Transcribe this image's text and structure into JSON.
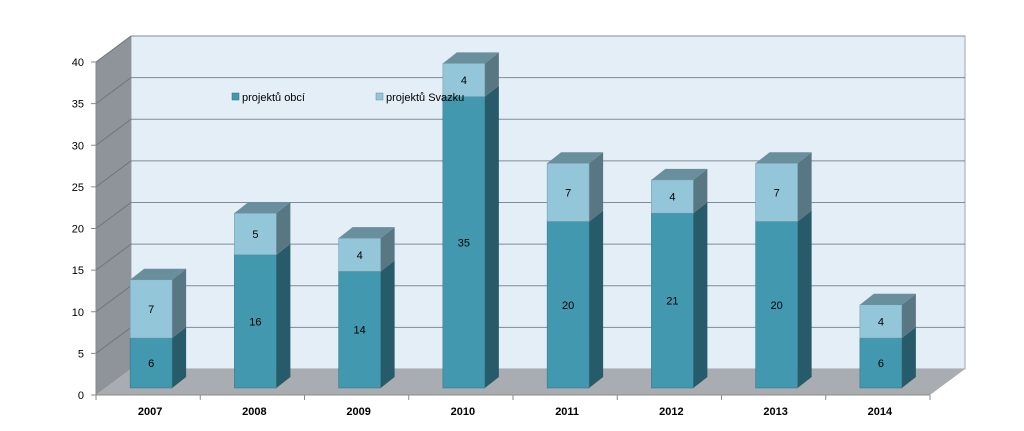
{
  "chart_data": {
    "type": "bar",
    "stacked": true,
    "three_d": true,
    "categories": [
      "2007",
      "2008",
      "2009",
      "2010",
      "2011",
      "2012",
      "2013",
      "2014"
    ],
    "series": [
      {
        "name": "projektů obcí",
        "values": [
          6,
          16,
          14,
          35,
          20,
          21,
          20,
          6
        ],
        "color": "#4198AF"
      },
      {
        "name": "projektů Svazku",
        "values": [
          7,
          5,
          4,
          4,
          7,
          4,
          7,
          4
        ],
        "color": "#93C6D8"
      }
    ],
    "ylim": [
      0,
      40
    ],
    "yticks": [
      0,
      5,
      10,
      15,
      20,
      25,
      30,
      35,
      40
    ],
    "grid": true,
    "legend_position": "top-left",
    "title": "",
    "xlabel": "",
    "ylabel": ""
  },
  "colors": {
    "back_wall": "#E4EEF6",
    "side_wall": "#8E9499",
    "floor": "#A9ADB1",
    "grid": "#7E8C99"
  }
}
